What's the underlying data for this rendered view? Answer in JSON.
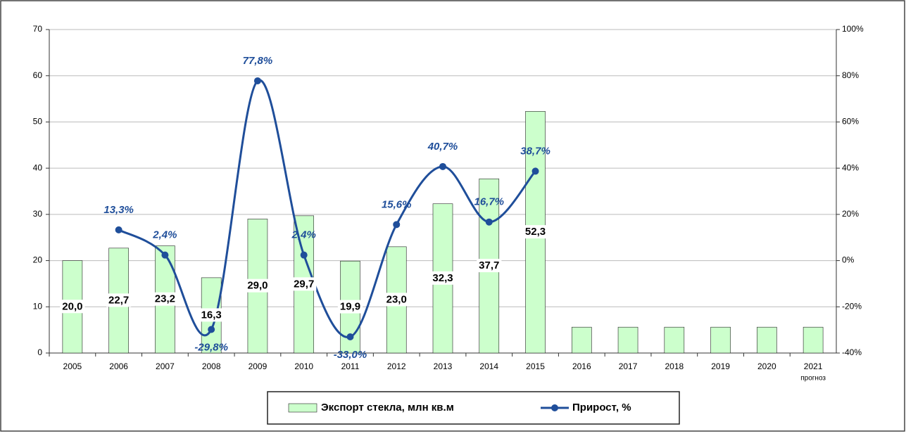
{
  "chart_data": {
    "type": "bar_line",
    "categories": [
      "2005",
      "2006",
      "2007",
      "2008",
      "2009",
      "2010",
      "2011",
      "2012",
      "2013",
      "2014",
      "2015",
      "2016",
      "2017",
      "2018",
      "2019",
      "2020",
      "2021"
    ],
    "x_annotation": "прогноз",
    "series": [
      {
        "name": "Экспорт стекла, млн  кв.м",
        "type": "bar",
        "color": "#ccffcc",
        "values": [
          20.0,
          22.7,
          23.2,
          16.3,
          29.0,
          29.7,
          19.9,
          23.0,
          32.3,
          37.7,
          52.3,
          5.6,
          5.6,
          5.6,
          5.6,
          5.6,
          5.6
        ],
        "value_labels": [
          "20,0",
          "22,7",
          "23,2",
          "16,3",
          "29,0",
          "29,7",
          "19,9",
          "23,0",
          "32,3",
          "37,7",
          "52,3",
          null,
          null,
          null,
          null,
          null,
          null
        ]
      },
      {
        "name": "Прирост, %",
        "type": "line",
        "axis": "y2",
        "color": "#1f4e9a",
        "values": [
          null,
          13.3,
          2.4,
          -29.8,
          77.8,
          2.4,
          -33.0,
          15.6,
          40.7,
          16.7,
          38.7,
          null,
          null,
          null,
          null,
          null,
          null
        ],
        "value_labels": [
          null,
          "13,3%",
          "2,4%",
          "-29,8%",
          "77,8%",
          "2,4%",
          "-33,0%",
          "15,6%",
          "40,7%",
          "16,7%",
          "38,7%",
          null,
          null,
          null,
          null,
          null,
          null
        ]
      }
    ],
    "ylim": [
      0,
      70
    ],
    "yticks": [
      0,
      10,
      20,
      30,
      40,
      50,
      60,
      70
    ],
    "y2lim": [
      -40,
      100
    ],
    "y2ticks": [
      {
        "value": -40,
        "label": "-40%"
      },
      {
        "value": -20,
        "label": "-20%"
      },
      {
        "value": 0,
        "label": "0%"
      },
      {
        "value": 20,
        "label": "20%"
      },
      {
        "value": 40,
        "label": "40%"
      },
      {
        "value": 60,
        "label": "60%"
      },
      {
        "value": 80,
        "label": "80%"
      },
      {
        "value": 100,
        "label": "100%"
      }
    ],
    "grid": true,
    "legend": "bottom"
  }
}
